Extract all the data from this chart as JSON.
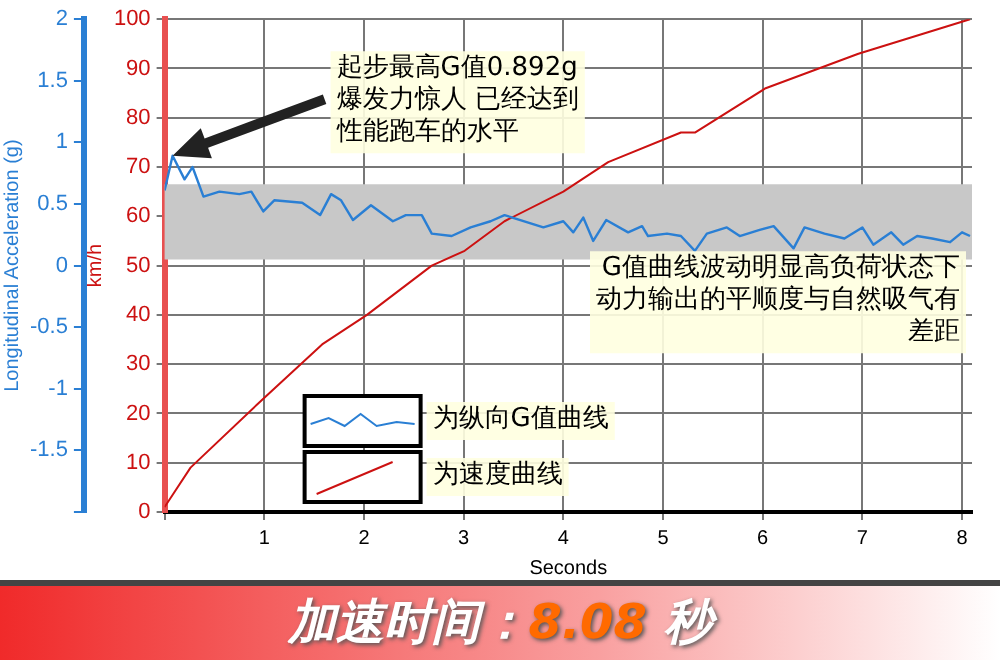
{
  "chart_data": {
    "type": "line",
    "xlabel": "Seconds",
    "ylabel": "Longitudinal Acceleration (g)",
    "y2label": "km/h",
    "xlim": [
      0,
      8.1
    ],
    "xticks": [
      {
        "value": 0,
        "label": null
      },
      1,
      2,
      3,
      4,
      5,
      6,
      7,
      8
    ],
    "ylim": [
      -2,
      2
    ],
    "yticks": [
      {
        "value": -2,
        "label": null
      },
      -1.5,
      -1,
      -0.5,
      0,
      0.5,
      1,
      1.5,
      2
    ],
    "y2lim": [
      0,
      100
    ],
    "y2ticks": [
      0,
      10,
      20,
      30,
      40,
      50,
      60,
      70,
      80,
      90,
      100
    ],
    "grid": true,
    "legend": "bottom left",
    "line_style": "solid",
    "marker": "none",
    "series": [
      {
        "name": "为纵向G值曲线",
        "color": "#2a7fd4",
        "x": [
          0,
          0.08,
          0.2,
          0.28,
          0.39,
          0.55,
          0.75,
          0.87,
          0.99,
          1.1,
          1.38,
          1.56,
          1.67,
          1.77,
          1.89,
          2.07,
          2.29,
          2.42,
          2.58,
          2.68,
          2.88,
          3.07,
          3.27,
          3.41,
          3.8,
          4,
          4.1,
          4.2,
          4.3,
          4.43,
          4.65,
          4.79,
          4.85,
          5.04,
          5.18,
          5.32,
          5.44,
          5.64,
          5.77,
          5.97,
          6.11,
          6.31,
          6.42,
          6.62,
          6.82,
          7,
          7.11,
          7.29,
          7.41,
          7.55,
          7.7,
          7.88,
          8,
          8.08
        ],
        "values": [
          0.61,
          0.892,
          0.7,
          0.8,
          0.56,
          0.6,
          0.58,
          0.6,
          0.44,
          0.53,
          0.51,
          0.41,
          0.58,
          0.53,
          0.37,
          0.49,
          0.36,
          0.41,
          0.41,
          0.26,
          0.24,
          0.31,
          0.36,
          0.41,
          0.31,
          0.36,
          0.27,
          0.39,
          0.2,
          0.37,
          0.27,
          0.32,
          0.24,
          0.26,
          0.24,
          0.12,
          0.26,
          0.31,
          0.24,
          0.29,
          0.32,
          0.14,
          0.31,
          0.26,
          0.22,
          0.31,
          0.17,
          0.27,
          0.17,
          0.24,
          0.22,
          0.19,
          0.27,
          0.24
        ]
      },
      {
        "name": "为速度曲线",
        "color": "#cc1111",
        "axis": "y2",
        "x": [
          0,
          0.26,
          0.99,
          1.58,
          2.03,
          2.68,
          3.01,
          3.41,
          4,
          4.45,
          5.18,
          5.32,
          6.03,
          6.96,
          8.08
        ],
        "values": [
          1,
          9,
          23,
          34,
          40,
          50,
          53,
          59,
          65,
          71,
          77,
          77,
          86,
          93,
          100
        ]
      }
    ],
    "bands": [
      {
        "axis": "y",
        "from": 0.05,
        "to": 0.66,
        "color": "#c8c8c8"
      }
    ],
    "annotations": [
      "起步最高G值0.892g爆发力惊人 已经达到性能跑车的水平",
      "G值曲线波动明显高负荷状态下动力输出的平顺度与自然吸气有差距",
      "加速时间：8.08 秒"
    ]
  }
}
